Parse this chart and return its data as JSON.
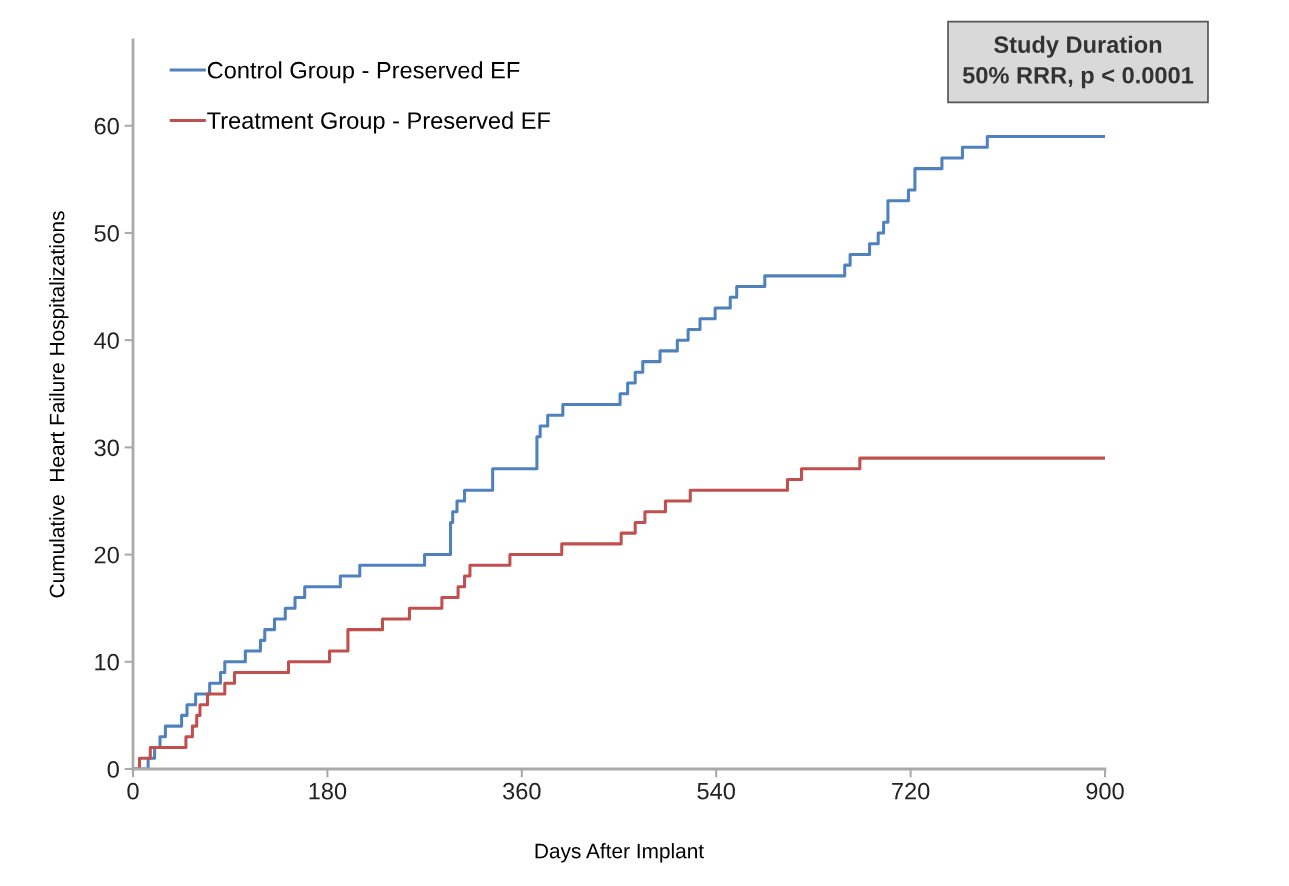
{
  "chart_data": {
    "type": "step",
    "xlabel": "Days After Implant",
    "ylabel": "Cumulative  Heart Failure Hospitalizations",
    "xlim": [
      0,
      900
    ],
    "xticks": [
      0,
      180,
      360,
      540,
      720,
      900
    ],
    "ylim": [
      0,
      68
    ],
    "yticks": [
      0,
      10,
      20,
      30,
      40,
      50,
      60
    ],
    "grid": false,
    "legend": "top left",
    "marker": "none",
    "line_style": "solid",
    "annotations": [
      "Study Duration",
      "50% RRR, p < 0.0001"
    ],
    "series": [
      {
        "name": "Control Group - Preserved EF",
        "color": "#4f81bd",
        "x": [
          0,
          14,
          20,
          25,
          30,
          45,
          50,
          58,
          71,
          81,
          85,
          104,
          118,
          122,
          131,
          141,
          150,
          159,
          192,
          210,
          270,
          294,
          296,
          300,
          307,
          333,
          374,
          377,
          384,
          398,
          451,
          458,
          465,
          472,
          488,
          504,
          514,
          525,
          539,
          553,
          559,
          585,
          659,
          664,
          682,
          690,
          695,
          699,
          718,
          724,
          749,
          768,
          791,
          900
        ],
        "values": [
          0,
          1,
          2,
          3,
          4,
          5,
          6,
          7,
          8,
          9,
          10,
          11,
          12,
          13,
          14,
          15,
          16,
          17,
          18,
          19,
          20,
          23,
          24,
          25,
          26,
          28,
          31,
          32,
          33,
          34,
          35,
          36,
          37,
          38,
          39,
          40,
          41,
          42,
          43,
          44,
          45,
          46,
          47,
          48,
          49,
          50,
          51,
          53,
          54,
          56,
          57,
          58,
          59,
          59
        ]
      },
      {
        "name": "Treatment Group - Preserved EF",
        "color": "#c0504d",
        "x": [
          0,
          6,
          16,
          49,
          55,
          59,
          62,
          69,
          85,
          94,
          144,
          182,
          199,
          231,
          256,
          286,
          301,
          307,
          312,
          349,
          397,
          452,
          465,
          474,
          493,
          516,
          606,
          619,
          673,
          900
        ],
        "values": [
          0,
          1,
          2,
          3,
          4,
          5,
          6,
          7,
          8,
          9,
          10,
          11,
          13,
          14,
          15,
          16,
          17,
          18,
          19,
          20,
          21,
          22,
          23,
          24,
          25,
          26,
          27,
          28,
          29,
          29
        ]
      }
    ]
  }
}
